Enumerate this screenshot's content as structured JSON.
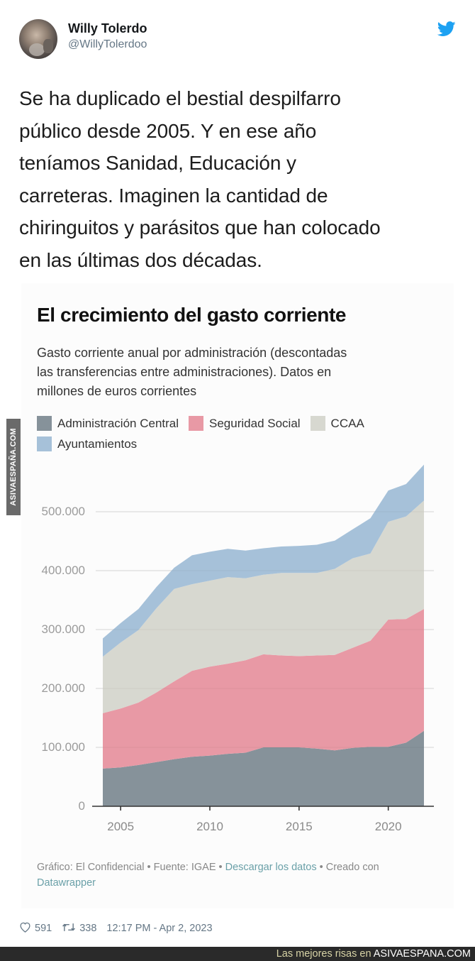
{
  "tweet": {
    "author_name": "Willy Tolerdo",
    "author_handle": "@WillyTolerdoo",
    "logo_icon": "twitter-bird-icon",
    "text_lines": [
      "Se ha duplicado el bestial despilfarro",
      "público desde 2005. Y en ese año",
      "teníamos Sanidad, Educación y",
      "carreteras. Imaginen la cantidad de",
      "chiringuitos y parásitos que han colocado",
      "en las últimas dos décadas."
    ],
    "likes": "591",
    "retweets": "338",
    "timestamp": "12:17 PM - Apr 2, 2023",
    "brand_color": "#1da1f2"
  },
  "chart_data": {
    "type": "area",
    "stacked": true,
    "title": "El crecimiento del gasto corriente",
    "subtitle_lines": [
      "Gasto corriente anual por administración (descontadas",
      "las transferencias entre administraciones). Datos en",
      "millones de euros corrientes"
    ],
    "xlabel": "",
    "ylabel": "",
    "x": [
      2004,
      2005,
      2006,
      2007,
      2008,
      2009,
      2010,
      2011,
      2012,
      2013,
      2014,
      2015,
      2016,
      2017,
      2018,
      2019,
      2020,
      2021,
      2022
    ],
    "xlim": [
      2004,
      2022
    ],
    "ylim": [
      0,
      580000
    ],
    "x_ticks": [
      2005,
      2010,
      2015,
      2020
    ],
    "x_tick_labels": [
      "2005",
      "2010",
      "2015",
      "2020"
    ],
    "y_ticks": [
      0,
      100000,
      200000,
      300000,
      400000,
      500000
    ],
    "y_tick_labels": [
      "0",
      "100.000",
      "200.000",
      "300.000",
      "400.000",
      "500.000"
    ],
    "grid": true,
    "legend_position": "top",
    "series": [
      {
        "name": "Administración Central",
        "color": "#86929a",
        "values": [
          64000,
          66000,
          70000,
          75000,
          80000,
          84000,
          86000,
          89000,
          91000,
          100000,
          100000,
          100000,
          98000,
          95000,
          99000,
          101000,
          101000,
          108000,
          128000
        ]
      },
      {
        "name": "Seguridad Social",
        "color": "#e899a5",
        "values": [
          94000,
          100000,
          106000,
          118000,
          132000,
          146000,
          151000,
          153000,
          157000,
          158000,
          156000,
          155000,
          158000,
          162000,
          170000,
          180000,
          216000,
          210000,
          207000
        ]
      },
      {
        "name": "CCAA",
        "color": "#d7d8d0",
        "values": [
          96000,
          112000,
          123000,
          143000,
          157000,
          147000,
          146000,
          147000,
          139000,
          135000,
          140000,
          141000,
          140000,
          146000,
          152000,
          148000,
          166000,
          174000,
          184000
        ]
      },
      {
        "name": "Ayuntamientos",
        "color": "#a6c1d9",
        "values": [
          31000,
          33000,
          36000,
          36000,
          36000,
          49000,
          49000,
          48000,
          47000,
          45000,
          45000,
          46000,
          48000,
          48000,
          49000,
          60000,
          53000,
          55000,
          61000
        ]
      }
    ],
    "source": {
      "prefix": "Gráfico: El Confidencial • Fuente: IGAE • ",
      "download_link": "Descargar los datos",
      "middle": " • Creado con",
      "tool_link": "Datawrapper",
      "link_color": "#6aa0a8"
    }
  },
  "watermark": "ASIVAESPAÑA.COM",
  "footer": {
    "tagline": "Las mejores risas en ",
    "brand": "ASIVAESPANA.COM"
  }
}
